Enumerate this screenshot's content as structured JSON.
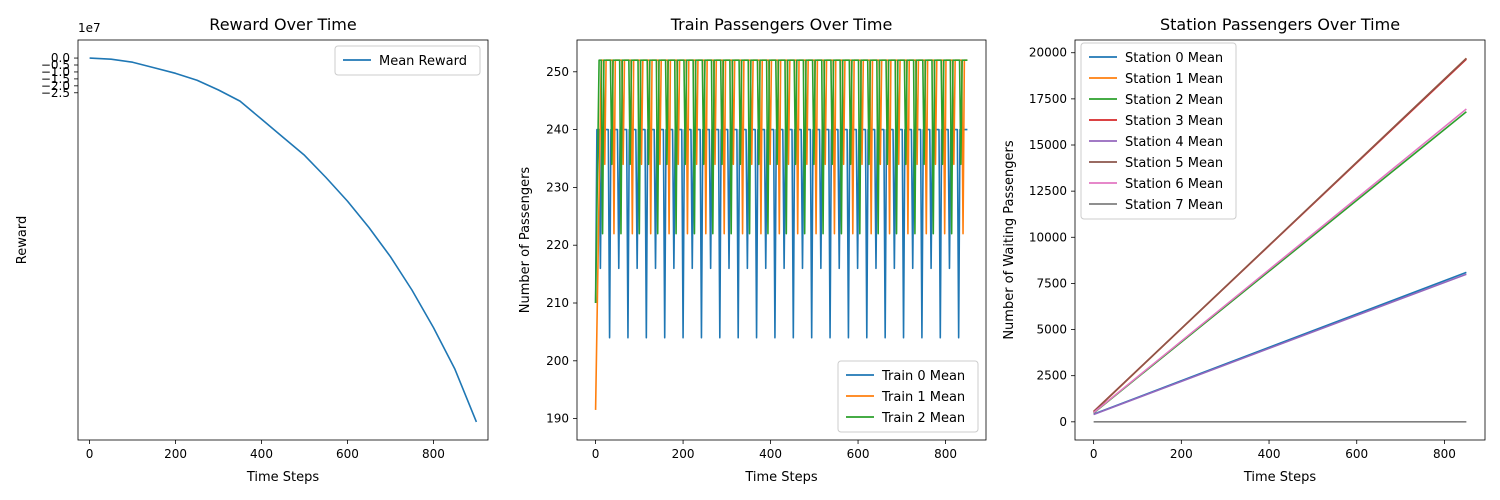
{
  "chart_data": [
    {
      "type": "line",
      "title": "Reward Over Time",
      "xlabel": "Time Steps",
      "ylabel": "Reward",
      "offset_text": "1e7",
      "xlim": [
        -27,
        927
      ],
      "ylim": [
        -27.5,
        1.3
      ],
      "xticks": [
        0,
        200,
        400,
        600,
        800
      ],
      "yticks": [
        0.0,
        -0.5,
        -1.0,
        -1.5,
        -2.0,
        -2.5
      ],
      "ytick_labels": [
        "0.0",
        "−0.5",
        "−1.0",
        "−1.5",
        "−2.0",
        "−2.5"
      ],
      "legend": "top-right",
      "series": [
        {
          "name": "Mean Reward",
          "color": "#1f77b4",
          "x": [
            0,
            50,
            100,
            150,
            200,
            250,
            300,
            350,
            400,
            450,
            500,
            550,
            600,
            650,
            700,
            750,
            800,
            850,
            900
          ],
          "y": [
            0.0,
            -0.08,
            -0.3,
            -0.7,
            -1.1,
            -1.6,
            -2.3,
            -3.1,
            -4.4,
            -5.7,
            -7.0,
            -8.6,
            -10.3,
            -12.2,
            -14.3,
            -16.7,
            -19.4,
            -22.4,
            -26.2
          ]
        }
      ]
    },
    {
      "type": "line",
      "title": "Train Passengers Over Time",
      "xlabel": "Time Steps",
      "ylabel": "Number of Passengers",
      "xlim": [
        -42.5,
        892.5
      ],
      "ylim": [
        186.3,
        255.5
      ],
      "xticks": [
        0,
        200,
        400,
        600,
        800
      ],
      "yticks": [
        190,
        200,
        210,
        220,
        230,
        240,
        250
      ],
      "legend": "bottom-right",
      "series": [
        {
          "name": "Train 0 Mean",
          "color": "#1f77b4",
          "x_start": 0,
          "x_end": 850,
          "start_value": 210,
          "period": 21,
          "low_values": [
            216,
            204
          ],
          "high_value": 240,
          "final_value": 240
        },
        {
          "name": "Train 1 Mean",
          "color": "#ff7f0e",
          "x_start": 0,
          "x_end": 850,
          "start_value": 191.5,
          "period": 21,
          "offset": 10,
          "low_values": [
            234,
            222
          ],
          "high_value": 252,
          "final_value": 252
        },
        {
          "name": "Train 2 Mean",
          "color": "#2ca02c",
          "x_start": 0,
          "x_end": 850,
          "start_value": 210,
          "period": 21,
          "offset": 5,
          "low_values": [
            222,
            234
          ],
          "high_value": 252,
          "final_value": 252
        }
      ]
    },
    {
      "type": "line",
      "title": "Station Passengers Over Time",
      "xlabel": "Time Steps",
      "ylabel": "Number of Waiting Passengers",
      "xlim": [
        -42.5,
        892.5
      ],
      "ylim": [
        -985,
        20690
      ],
      "xticks": [
        0,
        200,
        400,
        600,
        800
      ],
      "yticks": [
        0,
        2500,
        5000,
        7500,
        10000,
        12500,
        15000,
        17500,
        20000
      ],
      "legend": "top-left",
      "series": [
        {
          "name": "Station 0 Mean",
          "color": "#1f77b4",
          "x": [
            0,
            850
          ],
          "y": [
            420,
            8100
          ]
        },
        {
          "name": "Station 1 Mean",
          "color": "#ff7f0e",
          "x": [
            0,
            850
          ],
          "y": [
            540,
            19700
          ]
        },
        {
          "name": "Station 2 Mean",
          "color": "#2ca02c",
          "x": [
            0,
            850
          ],
          "y": [
            480,
            16800
          ]
        },
        {
          "name": "Station 3 Mean",
          "color": "#d62728",
          "x": [
            0,
            850
          ],
          "y": [
            560,
            19650
          ]
        },
        {
          "name": "Station 4 Mean",
          "color": "#9467bd",
          "x": [
            0,
            850
          ],
          "y": [
            400,
            8000
          ]
        },
        {
          "name": "Station 5 Mean",
          "color": "#8c564b",
          "x": [
            0,
            850
          ],
          "y": [
            550,
            19700
          ]
        },
        {
          "name": "Station 6 Mean",
          "color": "#e377c2",
          "x": [
            0,
            850
          ],
          "y": [
            500,
            16950
          ]
        },
        {
          "name": "Station 7 Mean",
          "color": "#7f7f7f",
          "x": [
            0,
            850
          ],
          "y": [
            0,
            0
          ]
        }
      ]
    }
  ]
}
